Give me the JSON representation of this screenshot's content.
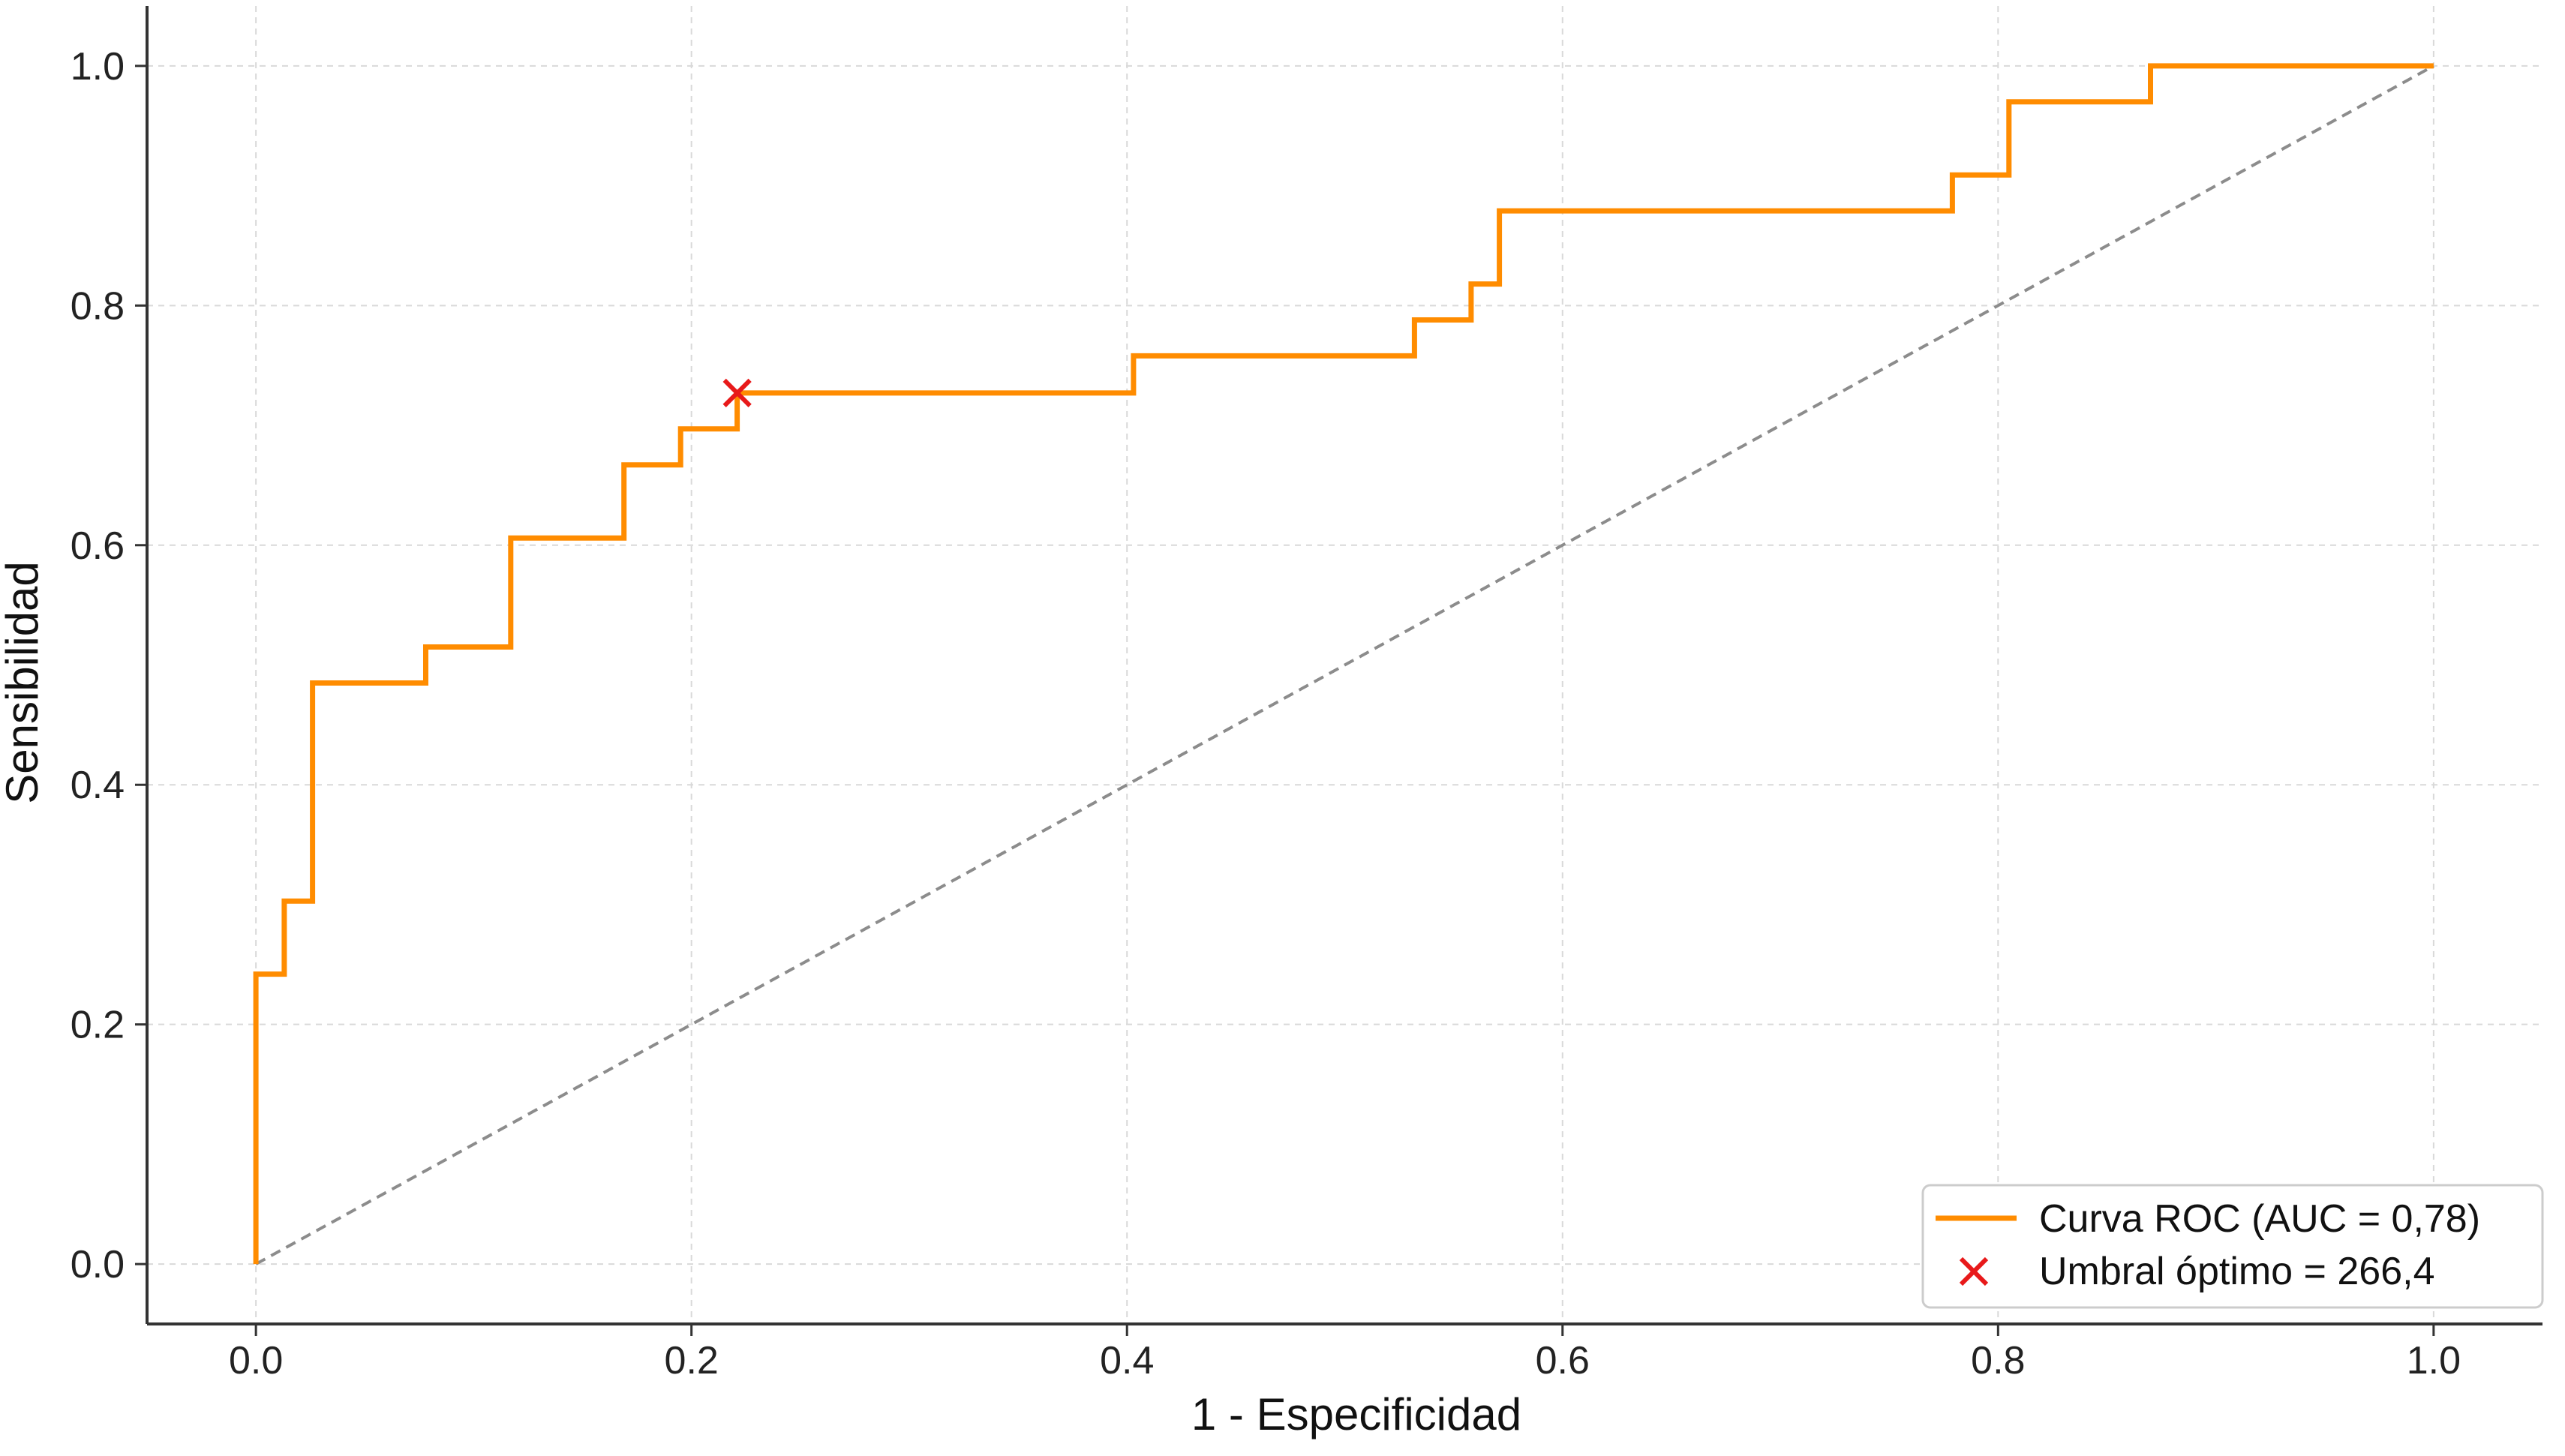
{
  "chart_data": {
    "type": "line",
    "title": "",
    "xlabel": "1 - Especificidad",
    "ylabel": "Sensibilidad",
    "xlim": [
      -0.05,
      1.05
    ],
    "ylim": [
      -0.05,
      1.05
    ],
    "grid": true,
    "legend_position": "bottom-right",
    "x_ticks": [
      "0.0",
      "0.2",
      "0.4",
      "0.6",
      "0.8",
      "1.0"
    ],
    "y_ticks": [
      "0.0",
      "0.2",
      "0.4",
      "0.6",
      "0.8",
      "1.0"
    ],
    "series": [
      {
        "name": "Curva ROC (AUC = 0,78)",
        "color": "#ff8c00",
        "x": [
          0.0,
          0.0,
          0.013,
          0.013,
          0.026,
          0.026,
          0.078,
          0.078,
          0.117,
          0.117,
          0.169,
          0.169,
          0.195,
          0.195,
          0.221,
          0.221,
          0.403,
          0.403,
          0.532,
          0.532,
          0.558,
          0.558,
          0.571,
          0.571,
          0.779,
          0.779,
          0.805,
          0.805,
          0.87,
          0.87,
          1.0
        ],
        "y": [
          0.0,
          0.242,
          0.242,
          0.303,
          0.303,
          0.485,
          0.485,
          0.515,
          0.515,
          0.606,
          0.606,
          0.667,
          0.667,
          0.697,
          0.697,
          0.727,
          0.727,
          0.758,
          0.758,
          0.788,
          0.788,
          0.818,
          0.818,
          0.879,
          0.879,
          0.909,
          0.909,
          0.97,
          0.97,
          1.0,
          1.0
        ]
      },
      {
        "name": "Umbral óptimo = 266,4",
        "type": "scatter",
        "marker": "x",
        "color": "#e8191a",
        "x": [
          0.221
        ],
        "y": [
          0.727
        ]
      }
    ],
    "reference_line": {
      "style": "dashed",
      "color": "#8c8c8c",
      "x": [
        0.0,
        1.0
      ],
      "y": [
        0.0,
        1.0
      ]
    }
  }
}
